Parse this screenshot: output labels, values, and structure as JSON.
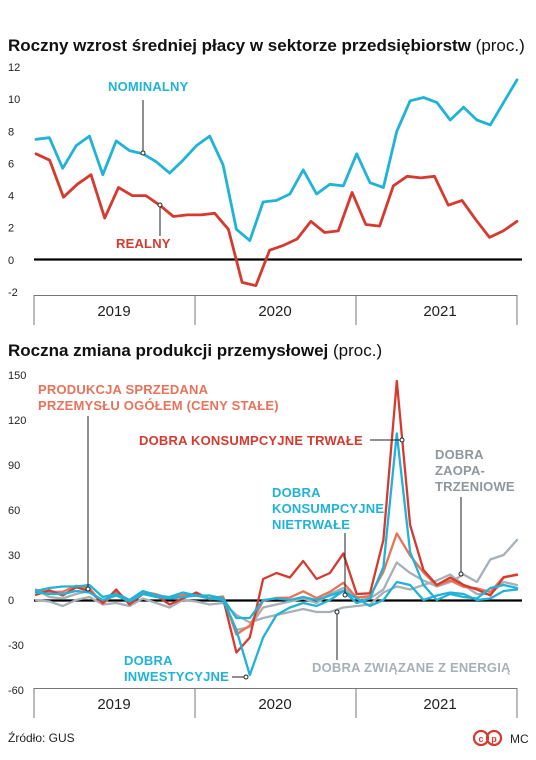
{
  "chart_data": [
    {
      "type": "line",
      "title": "Roczny wzrost średniej płacy w sektorze przedsiębiorstw",
      "unit": "(proc.)",
      "ylim": [
        -2,
        12
      ],
      "yticks": [
        "12",
        "10",
        "8",
        "6",
        "4",
        "2",
        "0",
        "-2"
      ],
      "years": [
        "2019",
        "2020",
        "2021"
      ],
      "grid": false,
      "series": [
        {
          "name": "NOMINALNY",
          "color": "#1fb3d8",
          "values": [
            7.5,
            7.6,
            5.7,
            7.1,
            7.7,
            5.3,
            7.4,
            6.8,
            6.6,
            6.1,
            5.4,
            6.2,
            7.1,
            7.7,
            5.9,
            1.9,
            1.2,
            3.6,
            3.7,
            4.1,
            5.6,
            4.1,
            4.7,
            4.6,
            6.6,
            4.8,
            4.5,
            8.0,
            9.9,
            10.1,
            9.8,
            8.7,
            9.5,
            8.7,
            8.4,
            9.8,
            11.2
          ]
        },
        {
          "name": "REALNY",
          "color": "#d63a2f",
          "values": [
            6.6,
            6.2,
            3.9,
            4.7,
            5.3,
            2.6,
            4.5,
            4.0,
            4.0,
            3.4,
            2.7,
            2.8,
            2.8,
            2.9,
            1.9,
            -1.4,
            -1.6,
            0.6,
            0.9,
            1.3,
            2.4,
            1.7,
            1.8,
            4.2,
            2.2,
            2.1,
            4.6,
            5.2,
            5.1,
            5.2,
            3.4,
            3.7,
            2.5,
            1.4,
            1.8,
            2.4
          ]
        }
      ]
    },
    {
      "type": "line",
      "title": "Roczna zmiana produkcji przemysłowej",
      "unit": "(proc.)",
      "ylim": [
        -60,
        150
      ],
      "yticks": [
        "150",
        "120",
        "90",
        "60",
        "30",
        "0",
        "-30",
        "-60"
      ],
      "years": [
        "2019",
        "2020",
        "2021"
      ],
      "grid": false,
      "series": [
        {
          "name": "PRODUKCJA SPRZEDANA PRZEMYSŁU OGÓŁEM (CENY STAŁE)",
          "color": "#e8735a",
          "values": [
            6.5,
            5.5,
            5.5,
            9.5,
            7.8,
            -2.5,
            5.2,
            -1.5,
            5.6,
            3.8,
            1.1,
            3.3,
            3.5,
            1.2,
            2.3,
            -23,
            -17,
            -0.5,
            1.4,
            1.6,
            5.8,
            1.3,
            5.5,
            11.5,
            1.6,
            2.7,
            18.8,
            44.4,
            29.7,
            18.3,
            9.7,
            13.1,
            8.8,
            7.8,
            5.3,
            15.3,
            16.7
          ]
        },
        {
          "name": "DOBRA KONSUMPCYJNE TRWAŁE",
          "color": "#d63a2f",
          "values": [
            3.5,
            6.5,
            3.0,
            8.5,
            6.0,
            -2.0,
            7.0,
            -3.0,
            4.0,
            3.0,
            -3.0,
            1.0,
            5.0,
            0.5,
            1.0,
            -35.0,
            -25.0,
            14.0,
            18.0,
            15.0,
            26.0,
            14.0,
            18.0,
            31.0,
            4.0,
            4.5,
            40.0,
            146.0,
            50.0,
            20.0,
            10.0,
            15.0,
            10.0,
            7.0,
            3.0,
            15.0,
            17.0
          ]
        },
        {
          "name": "DOBRA KONSUMPCYJNE NIETRWAŁE",
          "color": "#1fb3d8",
          "values": [
            6.0,
            8.0,
            9.0,
            9.0,
            10.0,
            2.0,
            4.0,
            0.0,
            6.0,
            3.0,
            2.0,
            5.0,
            3.0,
            3.0,
            1.0,
            -12.0,
            -12.0,
            0.0,
            1.0,
            0.0,
            2.0,
            0.0,
            3.0,
            6.0,
            -2.0,
            1.0,
            22.0,
            111.0,
            32.0,
            10.0,
            0.0,
            4.0,
            2.0,
            1.0,
            8.0,
            10.0,
            8.0
          ]
        },
        {
          "name": "DOBRA INWESTYCYJNE",
          "color": "#1fb3d8",
          "values": [
            5.0,
            4.0,
            4.0,
            6.0,
            5.0,
            0.0,
            3.0,
            -1.0,
            4.0,
            2.0,
            1.0,
            2.0,
            3.0,
            1.0,
            0.0,
            -20.0,
            -50.0,
            -25.0,
            -10.0,
            -5.0,
            -2.0,
            -4.0,
            0.0,
            6.0,
            1.0,
            -4.0,
            0.0,
            12.0,
            10.0,
            0.0,
            3.0,
            5.0,
            4.0,
            0.0,
            1.0,
            6.0,
            7.0
          ]
        },
        {
          "name": "DOBRA ZAOPATRZENIOWE",
          "color": "#a7b0b6",
          "values": [
            7.0,
            2.0,
            1.0,
            4.0,
            6.0,
            -1.0,
            5.0,
            0.0,
            4.0,
            3.0,
            1.0,
            2.0,
            3.0,
            1.0,
            1.0,
            -20.0,
            -18.0,
            -5.0,
            -3.0,
            -1.0,
            1.0,
            -2.0,
            4.0,
            8.0,
            2.0,
            1.0,
            7.0,
            25.0,
            18.0,
            13.0,
            9.0,
            12.0,
            17.0,
            12.0,
            27.0,
            30.0,
            40.0
          ]
        },
        {
          "name": "DOBRA ZWIĄZANE Z ENERGIĄ",
          "color": "#a7b0b6",
          "values": [
            0.0,
            -1.0,
            -4.0,
            0.0,
            2.0,
            -3.0,
            -2.0,
            -4.0,
            1.0,
            -2.0,
            -5.0,
            0.0,
            -1.0,
            -3.0,
            -2.0,
            -10.0,
            -15.0,
            -12.0,
            -10.0,
            -8.0,
            -6.0,
            -8.0,
            -8.0,
            -5.0,
            -4.0,
            -3.0,
            5.0,
            9.0,
            7.0,
            10.0,
            13.0,
            17.0,
            10.0,
            4.0,
            4.0,
            12.0,
            10.0
          ]
        }
      ]
    }
  ],
  "labels": {
    "nominalny": "NOMINALNY",
    "realny": "REALNY",
    "produkcja_1": "PRODUKCJA SPRZEDANA",
    "produkcja_2": "PRZEMYSŁU OGÓŁEM (CENY STAŁE)",
    "trwale": "DOBRA KONSUMPCYJNE TRWAŁE",
    "zaopatrzeniowe_1": "DOBRA",
    "zaopatrzeniowe_2": "ZAOPA-",
    "zaopatrzeniowe_3": "TRZENIOWE",
    "nietrwale_1": "DOBRA",
    "nietrwale_2": "KONSUMPCYJNE",
    "nietrwale_3": "NIETRWAŁE",
    "inwestycyjne_1": "DOBRA",
    "inwestycyjne_2": "INWESTYCYJNE",
    "energia": "DOBRA ZWIĄZANE Z ENERGIĄ"
  },
  "footer": {
    "source": "Źródło: GUS",
    "logo_text": "cp",
    "author": "MC"
  },
  "colors": {
    "brand_red": "#d63a2f",
    "cyan": "#1fb3d8",
    "orange": "#e8735a",
    "grey": "#a7b0b6"
  }
}
